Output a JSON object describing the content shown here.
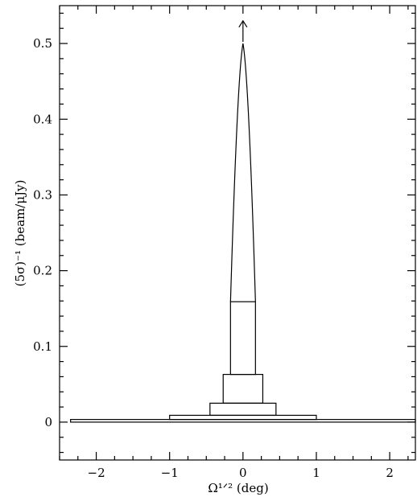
{
  "chart_data": {
    "type": "area",
    "title": "",
    "xlabel": "Ω¹ᐟ² (deg)",
    "ylabel": "(5σ)⁻¹ (beam/μJy)",
    "xlim": [
      -2.5,
      2.35
    ],
    "ylim": [
      -0.05,
      0.55
    ],
    "x_ticks": [
      -2,
      -1,
      0,
      1,
      2
    ],
    "x_tick_labels": [
      "−2",
      "−1",
      "0",
      "1",
      "2"
    ],
    "y_ticks": [
      0,
      0.1,
      0.2,
      0.3,
      0.4,
      0.5
    ],
    "y_tick_labels": [
      "0",
      "0.1",
      "0.2",
      "0.3",
      "0.4",
      "0.5"
    ],
    "grid": false,
    "boxes": [
      {
        "x": [
          -2.35,
          2.35
        ],
        "y": [
          0.0,
          0.0035
        ]
      },
      {
        "x": [
          -1.0,
          1.0
        ],
        "y": [
          0.0035,
          0.009
        ]
      },
      {
        "x": [
          -0.45,
          0.45
        ],
        "y": [
          0.009,
          0.025
        ]
      },
      {
        "x": [
          -0.27,
          0.27
        ],
        "y": [
          0.025,
          0.063
        ]
      },
      {
        "x": [
          -0.17,
          0.17
        ],
        "y": [
          0.063,
          0.159
        ]
      }
    ],
    "peak": {
      "x_base": [
        -0.17,
        0.17
      ],
      "y_base": 0.159,
      "x_top": 0.0,
      "y_top": 0.5
    },
    "arrow": {
      "x": 0.0,
      "y_from": 0.5,
      "y_to": 0.53
    }
  }
}
